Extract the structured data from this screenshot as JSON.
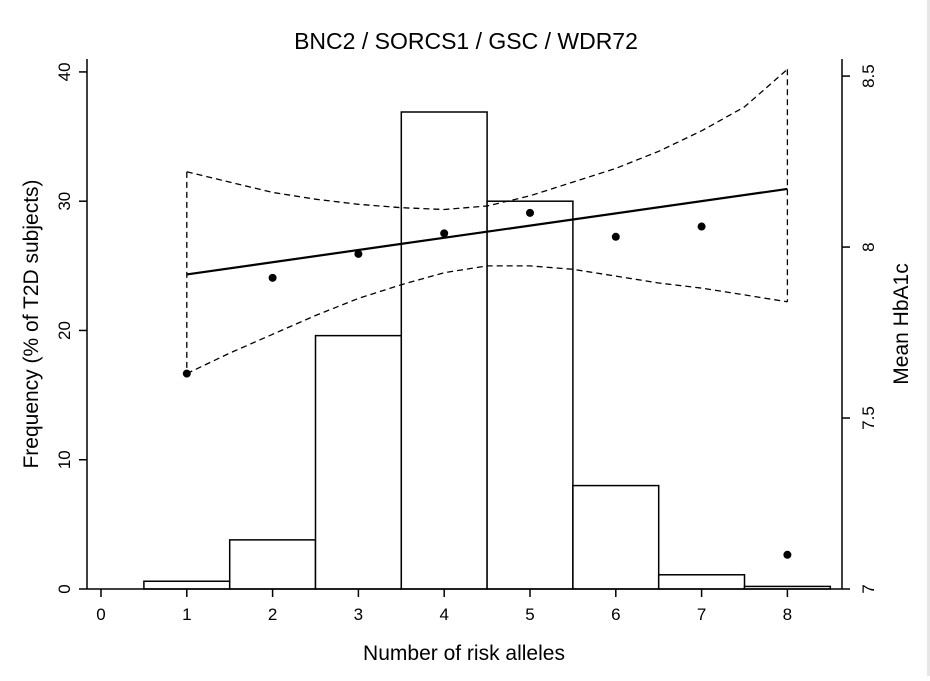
{
  "chart_data": {
    "type": "bar",
    "title": "BNC2 / SORCS1 / GSC / WDR72",
    "xlabel": "Number of risk alleles",
    "ylabel": "Frequency (% of T2D subjects)",
    "y2label": "Mean HbA1c",
    "x_ticks": [
      "0",
      "1",
      "2",
      "3",
      "4",
      "5",
      "6",
      "7",
      "8"
    ],
    "y_ticks": [
      "0",
      "10",
      "20",
      "30",
      "40"
    ],
    "y2_ticks": [
      "7",
      "7.5",
      "8",
      "8.5"
    ],
    "xlim": [
      -0.5,
      8.5
    ],
    "ylim": [
      0,
      41
    ],
    "y2lim": [
      7,
      8.55
    ],
    "grid": false,
    "series": [
      {
        "kind": "histogram",
        "axis": "left",
        "x": [
          1,
          2,
          3,
          4,
          5,
          6,
          7,
          8
        ],
        "values": [
          0.6,
          3.8,
          19.6,
          36.9,
          30.0,
          8.0,
          1.1,
          0.2
        ]
      },
      {
        "kind": "points",
        "axis": "right",
        "x": [
          1,
          2,
          3,
          4,
          5,
          6,
          7,
          8
        ],
        "values": [
          7.63,
          7.91,
          7.98,
          8.04,
          8.1,
          8.03,
          8.06,
          7.1
        ]
      },
      {
        "kind": "regression-line",
        "axis": "right",
        "x": [
          1,
          8
        ],
        "values": [
          7.92,
          8.17
        ]
      },
      {
        "kind": "ci-upper",
        "axis": "right",
        "x": [
          1,
          1.5,
          2,
          2.5,
          3,
          3.5,
          4,
          4.5,
          5,
          5.5,
          6,
          6.5,
          7,
          7.5,
          8
        ],
        "values": [
          8.22,
          8.19,
          8.16,
          8.14,
          8.125,
          8.115,
          8.11,
          8.12,
          8.15,
          8.19,
          8.23,
          8.28,
          8.34,
          8.41,
          8.52
        ]
      },
      {
        "kind": "ci-lower",
        "axis": "right",
        "x": [
          1,
          1.5,
          2,
          2.5,
          3,
          3.5,
          4,
          4.5,
          5,
          5.5,
          6,
          6.5,
          7,
          7.5,
          8
        ],
        "values": [
          7.63,
          7.69,
          7.745,
          7.8,
          7.85,
          7.89,
          7.925,
          7.945,
          7.945,
          7.935,
          7.915,
          7.895,
          7.88,
          7.86,
          7.84
        ]
      }
    ]
  }
}
